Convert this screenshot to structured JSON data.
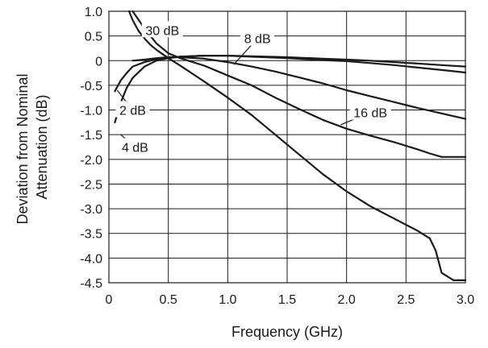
{
  "chart_data": {
    "type": "line",
    "title": "",
    "xlabel": "Frequency (GHz)",
    "ylabel_lines": [
      "Deviation from Nominal",
      "Attenuation (dB)"
    ],
    "xlim": [
      0,
      3.0
    ],
    "ylim": [
      -4.5,
      1.0
    ],
    "xticks": [
      0,
      0.5,
      1.0,
      1.5,
      2.0,
      2.5,
      3.0
    ],
    "xtick_labels": [
      "0",
      "0.5",
      "1.0",
      "1.5",
      "2.0",
      "2.5",
      "3.0"
    ],
    "yticks": [
      1.0,
      0.5,
      0,
      -0.5,
      -1.0,
      -1.5,
      -2.0,
      -2.5,
      -3.0,
      -3.5,
      -4.0,
      -4.5
    ],
    "ytick_labels": [
      "1.0",
      "0.5",
      "0",
      "-0.5",
      "-1.0",
      "-1.5",
      "-2.0",
      "-2.5",
      "-3.0",
      "-3.5",
      "-4.0",
      "-4.5"
    ],
    "grid": true,
    "legend": "none (inline labels)",
    "series": [
      {
        "name": "30 dB",
        "x": [
          0.17,
          0.2,
          0.25,
          0.3,
          0.35,
          0.4,
          0.5,
          0.6,
          0.8,
          1.0,
          1.2,
          1.4,
          1.6,
          1.8,
          2.0,
          2.2,
          2.4,
          2.6,
          2.7,
          2.75,
          2.8,
          2.9,
          3.0
        ],
        "y": [
          1.0,
          0.82,
          0.6,
          0.45,
          0.32,
          0.22,
          0.05,
          -0.1,
          -0.42,
          -0.75,
          -1.1,
          -1.5,
          -1.9,
          -2.3,
          -2.65,
          -2.95,
          -3.2,
          -3.45,
          -3.6,
          -3.85,
          -4.3,
          -4.45,
          -4.45
        ]
      },
      {
        "name": "16 dB",
        "x": [
          0.2,
          0.3,
          0.4,
          0.5,
          0.6,
          0.8,
          1.0,
          1.2,
          1.4,
          1.6,
          1.8,
          2.0,
          2.2,
          2.4,
          2.6,
          2.7,
          2.8,
          2.9,
          3.0
        ],
        "y": [
          1.0,
          0.65,
          0.35,
          0.15,
          0.05,
          -0.1,
          -0.3,
          -0.5,
          -0.75,
          -0.98,
          -1.2,
          -1.38,
          -1.52,
          -1.65,
          -1.8,
          -1.88,
          -1.95,
          -1.95,
          -1.95
        ]
      },
      {
        "name": "8 dB",
        "x": [
          0.2,
          0.3,
          0.4,
          0.5,
          0.6,
          0.8,
          1.0,
          1.2,
          1.4,
          1.6,
          1.8,
          2.0,
          2.2,
          2.4,
          2.6,
          2.8,
          3.0
        ],
        "y": [
          0.0,
          0.02,
          0.05,
          0.07,
          0.07,
          0.04,
          -0.03,
          -0.12,
          -0.22,
          -0.34,
          -0.46,
          -0.6,
          -0.72,
          -0.84,
          -0.96,
          -1.07,
          -1.18
        ]
      },
      {
        "name": "4 dB",
        "x": [
          0.05,
          0.1,
          0.15,
          0.2,
          0.3,
          0.4,
          0.5,
          0.6,
          0.8,
          1.0,
          1.2,
          1.5,
          1.8,
          2.0,
          2.2,
          2.4,
          2.6,
          2.8,
          3.0
        ],
        "y": [
          -1.25,
          -0.85,
          -0.55,
          -0.35,
          -0.12,
          0.0,
          0.05,
          0.08,
          0.1,
          0.1,
          0.08,
          0.05,
          0.01,
          -0.01,
          -0.05,
          -0.09,
          -0.14,
          -0.19,
          -0.24
        ]
      },
      {
        "name": "2 dB",
        "x": [
          0.05,
          0.1,
          0.15,
          0.2,
          0.3,
          0.4,
          0.5,
          0.6,
          0.8,
          1.0,
          1.2,
          1.5,
          1.8,
          2.0,
          2.2,
          2.4,
          2.6,
          2.8,
          3.0
        ],
        "y": [
          -0.62,
          -0.4,
          -0.25,
          -0.12,
          -0.03,
          0.03,
          0.06,
          0.08,
          0.1,
          0.1,
          0.09,
          0.07,
          0.04,
          0.02,
          0.0,
          -0.03,
          -0.06,
          -0.09,
          -0.12
        ]
      }
    ],
    "annotations": [
      {
        "text": "30 dB",
        "label_x": 0.45,
        "label_y": 0.62,
        "tip_x": 0.27,
        "tip_y": 0.72
      },
      {
        "text": "8 dB",
        "label_x": 1.25,
        "label_y": 0.45,
        "tip_x": 1.05,
        "tip_y": -0.08
      },
      {
        "text": "16 dB",
        "label_x": 2.2,
        "label_y": -1.05,
        "tip_x": 1.95,
        "tip_y": -1.3
      },
      {
        "text": "2 dB",
        "label_x": 0.2,
        "label_y": -1.0,
        "tip_x": 0.07,
        "tip_y": -0.6
      },
      {
        "text": "4 dB",
        "label_x": 0.22,
        "label_y": -1.75,
        "tip_x": 0.1,
        "tip_y": -1.5
      }
    ]
  }
}
